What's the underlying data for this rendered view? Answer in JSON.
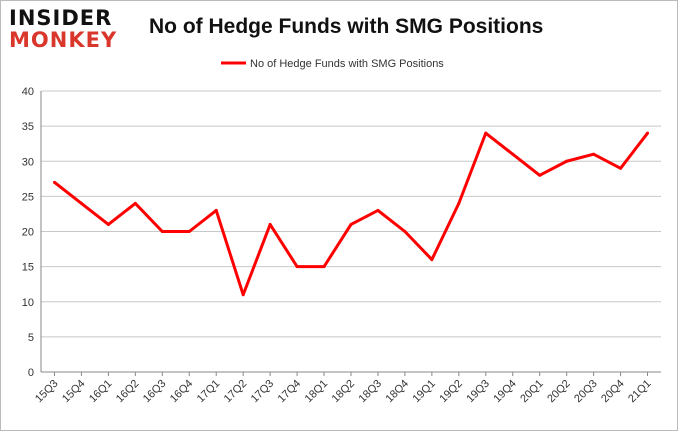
{
  "logo": {
    "line1": "INSIDER",
    "line2": "MONKEY"
  },
  "chart_data": {
    "type": "line",
    "title": "No of Hedge Funds with SMG Positions",
    "categories": [
      "15Q3",
      "15Q4",
      "16Q1",
      "16Q2",
      "16Q3",
      "16Q4",
      "17Q1",
      "17Q2",
      "17Q3",
      "17Q4",
      "18Q1",
      "18Q2",
      "18Q3",
      "18Q4",
      "19Q1",
      "19Q2",
      "19Q3",
      "19Q4",
      "20Q1",
      "20Q2",
      "20Q3",
      "20Q4",
      "21Q1"
    ],
    "series": [
      {
        "name": "No of Hedge Funds with SMG Positions",
        "color": "#ff0000",
        "values": [
          27,
          24,
          21,
          24,
          20,
          20,
          23,
          11,
          21,
          15,
          15,
          21,
          23,
          20,
          16,
          24,
          34,
          31,
          28,
          30,
          31,
          29,
          34
        ]
      }
    ],
    "ylim": [
      0,
      40
    ],
    "yticks": [
      0,
      5,
      10,
      15,
      20,
      25,
      30,
      35,
      40
    ],
    "grid": true,
    "legend": "top-center",
    "xlabel": "",
    "ylabel": ""
  }
}
